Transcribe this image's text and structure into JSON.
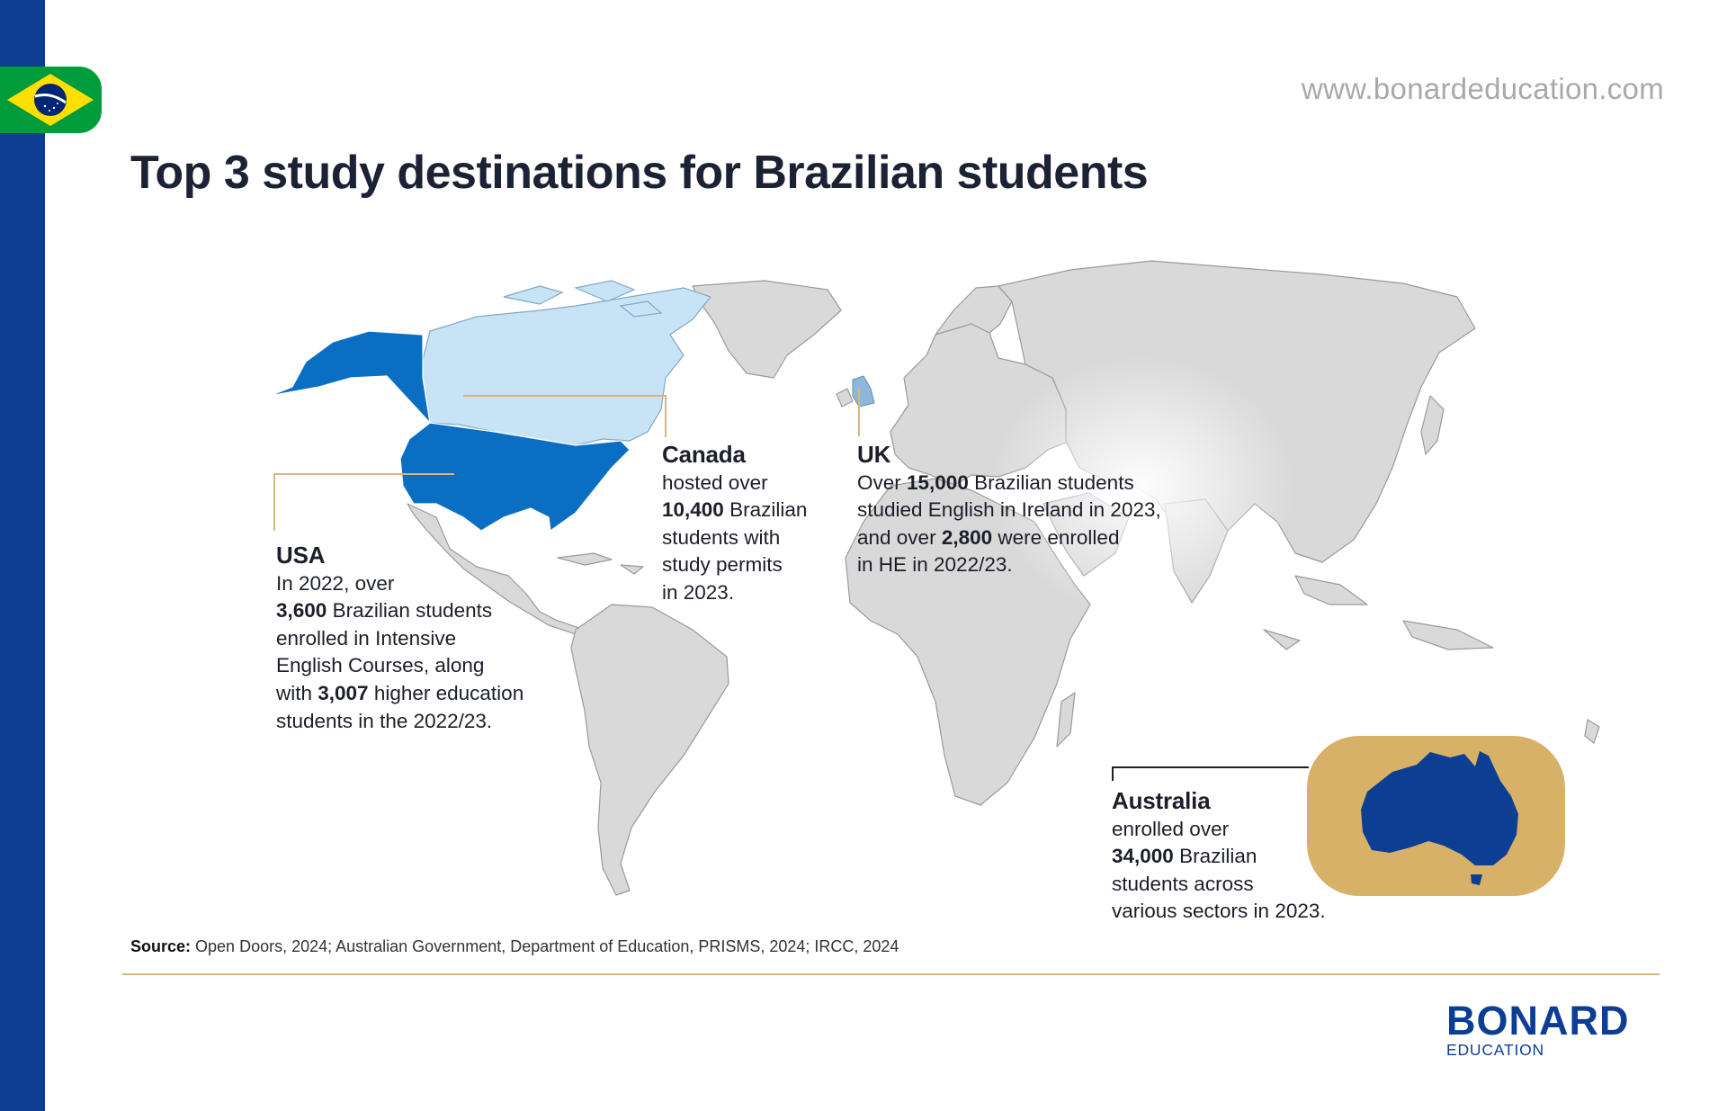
{
  "header": {
    "url": "www.bonardeducation.com",
    "title": "Top 3 study destinations for Brazilian students"
  },
  "colors": {
    "side_bar": "#0c3f94",
    "usa": "#0a6fc2",
    "canada": "#c8e3f5",
    "uk": "#8db8dc",
    "land": "#d9d9d9",
    "leader_line": "#d8b67a",
    "australia_badge": "#d8b168",
    "australia_fill": "#0c3f94"
  },
  "icons": {
    "flag": "brazil-flag-icon",
    "australia": "australia-map-icon"
  },
  "callouts": {
    "usa": {
      "name": "USA",
      "l1": "In 2022, over",
      "l2_bold": "3,600",
      "l2_rest": " Brazilian students",
      "l3": "enrolled in Intensive",
      "l4": "English Courses, along",
      "l5_pre": "with ",
      "l5_bold": "3,007",
      "l5_rest": " higher education",
      "l6": "students in the 2022/23."
    },
    "canada": {
      "name": "Canada",
      "l1": "hosted over",
      "l2_bold": "10,400",
      "l2_rest": " Brazilian",
      "l3": "students with",
      "l4": "study permits",
      "l5": "in 2023."
    },
    "uk": {
      "name": "UK",
      "l1_pre": "Over ",
      "l1_bold": "15,000",
      "l1_rest": " Brazilian students",
      "l2": "studied English in Ireland in 2023,",
      "l3_pre": "and over ",
      "l3_bold": "2,800",
      "l3_rest": " were enrolled",
      "l4": "in HE in 2022/23."
    },
    "australia": {
      "name": "Australia",
      "l1": "enrolled over",
      "l2_bold": "34,000",
      "l2_rest": " Brazilian",
      "l3": "students across",
      "l4": "various sectors in 2023."
    }
  },
  "footer": {
    "source_label": "Source:",
    "source_text": " Open Doors, 2024; Australian Government, Department of Education, PRISMS, 2024; IRCC, 2024",
    "logo_word": "BONARD",
    "logo_sub": "EDUCATION"
  }
}
